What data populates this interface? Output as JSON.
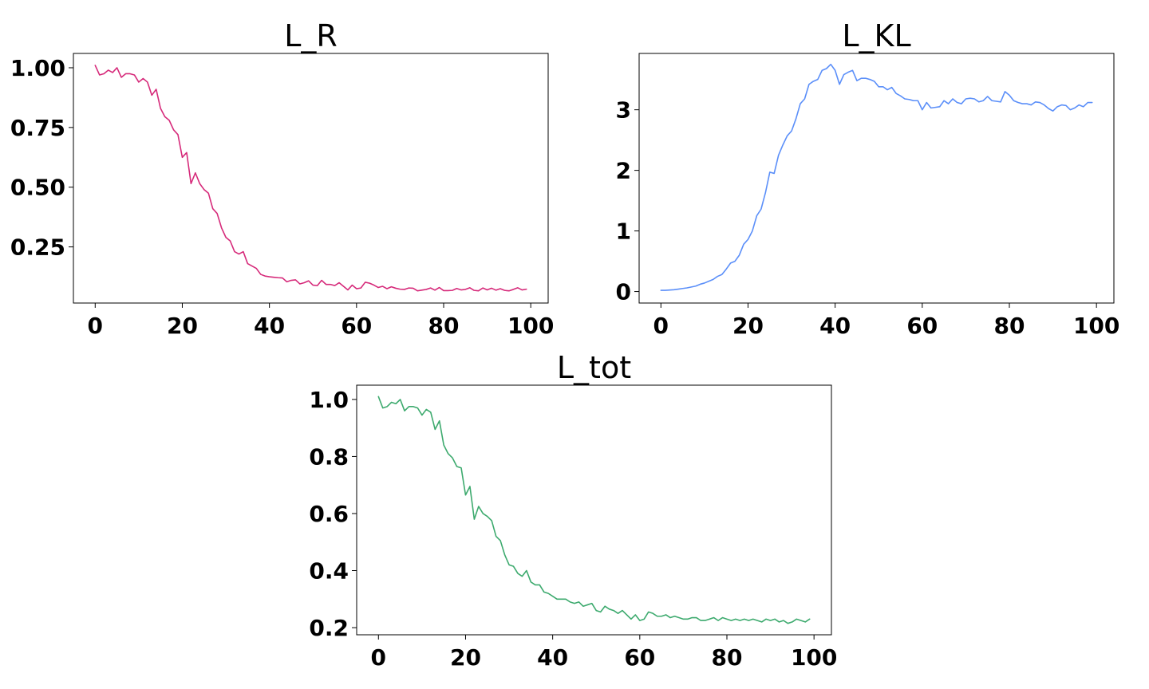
{
  "chart_data": [
    {
      "type": "line",
      "title": "L_R",
      "xlabel": "",
      "ylabel": "",
      "xlim": [
        -5,
        104
      ],
      "ylim": [
        0.015,
        1.06
      ],
      "xticks": [
        0,
        20,
        40,
        60,
        80,
        100
      ],
      "xtick_labels": [
        "0",
        "20",
        "40",
        "60",
        "80",
        "100"
      ],
      "yticks": [
        0.25,
        0.5,
        0.75,
        1.0
      ],
      "ytick_labels": [
        "0.25",
        "0.50",
        "0.75",
        "1.00"
      ],
      "grid": false,
      "legend": "none",
      "color": "#d62a7a",
      "series": [
        {
          "x": [
            0,
            1,
            2,
            3,
            4,
            5,
            6,
            7,
            8,
            9,
            10,
            11,
            12,
            13,
            14,
            15,
            16,
            17,
            18,
            19,
            20,
            21,
            22,
            23,
            24,
            25,
            26,
            27,
            28,
            29,
            30,
            31,
            32,
            33,
            34,
            35,
            36,
            37,
            38,
            39,
            40,
            41,
            42,
            43,
            44,
            45,
            46,
            47,
            48,
            49,
            50,
            51,
            52,
            53,
            54,
            55,
            56,
            57,
            58,
            59,
            60,
            61,
            62,
            63,
            64,
            65,
            66,
            67,
            68,
            69,
            70,
            71,
            72,
            73,
            74,
            75,
            76,
            77,
            78,
            79,
            80,
            81,
            82,
            83,
            84,
            85,
            86,
            87,
            88,
            89,
            90,
            91,
            92,
            93,
            94,
            95,
            96,
            97,
            98,
            99
          ],
          "values": [
            1.01,
            0.97,
            0.975,
            0.99,
            0.98,
            1.0,
            0.96,
            0.975,
            0.975,
            0.97,
            0.94,
            0.955,
            0.94,
            0.885,
            0.91,
            0.83,
            0.795,
            0.78,
            0.74,
            0.72,
            0.625,
            0.645,
            0.515,
            0.56,
            0.515,
            0.49,
            0.475,
            0.41,
            0.39,
            0.33,
            0.29,
            0.275,
            0.23,
            0.22,
            0.23,
            0.18,
            0.17,
            0.16,
            0.135,
            0.128,
            0.125,
            0.123,
            0.121,
            0.12,
            0.104,
            0.11,
            0.112,
            0.095,
            0.1,
            0.108,
            0.09,
            0.088,
            0.11,
            0.093,
            0.093,
            0.088,
            0.1,
            0.085,
            0.07,
            0.09,
            0.075,
            0.078,
            0.102,
            0.098,
            0.09,
            0.08,
            0.085,
            0.075,
            0.083,
            0.077,
            0.073,
            0.072,
            0.078,
            0.077,
            0.066,
            0.069,
            0.072,
            0.078,
            0.069,
            0.08,
            0.067,
            0.067,
            0.068,
            0.076,
            0.07,
            0.072,
            0.079,
            0.068,
            0.066,
            0.078,
            0.07,
            0.077,
            0.069,
            0.075,
            0.068,
            0.066,
            0.072,
            0.079,
            0.07,
            0.073
          ]
        }
      ]
    },
    {
      "type": "line",
      "title": "L_KL",
      "xlabel": "",
      "ylabel": "",
      "xlim": [
        -5,
        104
      ],
      "ylim": [
        -0.19,
        3.93
      ],
      "xticks": [
        0,
        20,
        40,
        60,
        80,
        100
      ],
      "xtick_labels": [
        "0",
        "20",
        "40",
        "60",
        "80",
        "100"
      ],
      "yticks": [
        0,
        1,
        2,
        3
      ],
      "ytick_labels": [
        "0",
        "1",
        "2",
        "3"
      ],
      "grid": false,
      "legend": "none",
      "color": "#5b8ff9",
      "series": [
        {
          "x": [
            0,
            1,
            2,
            3,
            4,
            5,
            6,
            7,
            8,
            9,
            10,
            11,
            12,
            13,
            14,
            15,
            16,
            17,
            18,
            19,
            20,
            21,
            22,
            23,
            24,
            25,
            26,
            27,
            28,
            29,
            30,
            31,
            32,
            33,
            34,
            35,
            36,
            37,
            38,
            39,
            40,
            41,
            42,
            43,
            44,
            45,
            46,
            47,
            48,
            49,
            50,
            51,
            52,
            53,
            54,
            55,
            56,
            57,
            58,
            59,
            60,
            61,
            62,
            63,
            64,
            65,
            66,
            67,
            68,
            69,
            70,
            71,
            72,
            73,
            74,
            75,
            76,
            77,
            78,
            79,
            80,
            81,
            82,
            83,
            84,
            85,
            86,
            87,
            88,
            89,
            90,
            91,
            92,
            93,
            94,
            95,
            96,
            97,
            98,
            99
          ],
          "values": [
            0.02,
            0.02,
            0.025,
            0.03,
            0.04,
            0.05,
            0.06,
            0.075,
            0.09,
            0.12,
            0.14,
            0.17,
            0.2,
            0.25,
            0.28,
            0.37,
            0.47,
            0.5,
            0.6,
            0.78,
            0.86,
            1.0,
            1.25,
            1.36,
            1.63,
            1.97,
            1.95,
            2.25,
            2.42,
            2.57,
            2.65,
            2.85,
            3.1,
            3.18,
            3.42,
            3.47,
            3.5,
            3.65,
            3.68,
            3.75,
            3.65,
            3.42,
            3.58,
            3.62,
            3.65,
            3.48,
            3.52,
            3.52,
            3.5,
            3.47,
            3.38,
            3.38,
            3.33,
            3.37,
            3.27,
            3.23,
            3.18,
            3.17,
            3.15,
            3.15,
            3.0,
            3.12,
            3.03,
            3.04,
            3.05,
            3.15,
            3.1,
            3.18,
            3.12,
            3.1,
            3.18,
            3.19,
            3.18,
            3.13,
            3.15,
            3.22,
            3.15,
            3.14,
            3.13,
            3.3,
            3.24,
            3.15,
            3.12,
            3.1,
            3.1,
            3.08,
            3.13,
            3.12,
            3.08,
            3.02,
            2.98,
            3.05,
            3.08,
            3.07,
            3.0,
            3.03,
            3.08,
            3.05,
            3.12,
            3.12
          ]
        }
      ]
    },
    {
      "type": "line",
      "title": "L_tot",
      "xlabel": "",
      "ylabel": "",
      "xlim": [
        -5,
        104
      ],
      "ylim": [
        0.175,
        1.05
      ],
      "xticks": [
        0,
        20,
        40,
        60,
        80,
        100
      ],
      "xtick_labels": [
        "0",
        "20",
        "40",
        "60",
        "80",
        "100"
      ],
      "yticks": [
        0.2,
        0.4,
        0.6,
        0.8,
        1.0
      ],
      "ytick_labels": [
        "0.2",
        "0.4",
        "0.6",
        "0.8",
        "1.0"
      ],
      "grid": false,
      "legend": "none",
      "color": "#3daa6e",
      "series": [
        {
          "x": [
            0,
            1,
            2,
            3,
            4,
            5,
            6,
            7,
            8,
            9,
            10,
            11,
            12,
            13,
            14,
            15,
            16,
            17,
            18,
            19,
            20,
            21,
            22,
            23,
            24,
            25,
            26,
            27,
            28,
            29,
            30,
            31,
            32,
            33,
            34,
            35,
            36,
            37,
            38,
            39,
            40,
            41,
            42,
            43,
            44,
            45,
            46,
            47,
            48,
            49,
            50,
            51,
            52,
            53,
            54,
            55,
            56,
            57,
            58,
            59,
            60,
            61,
            62,
            63,
            64,
            65,
            66,
            67,
            68,
            69,
            70,
            71,
            72,
            73,
            74,
            75,
            76,
            77,
            78,
            79,
            80,
            81,
            82,
            83,
            84,
            85,
            86,
            87,
            88,
            89,
            90,
            91,
            92,
            93,
            94,
            95,
            96,
            97,
            98,
            99
          ],
          "values": [
            1.01,
            0.97,
            0.975,
            0.99,
            0.985,
            1.0,
            0.96,
            0.975,
            0.975,
            0.97,
            0.945,
            0.965,
            0.955,
            0.895,
            0.925,
            0.84,
            0.81,
            0.795,
            0.765,
            0.76,
            0.665,
            0.695,
            0.58,
            0.625,
            0.6,
            0.59,
            0.575,
            0.52,
            0.505,
            0.455,
            0.42,
            0.415,
            0.39,
            0.38,
            0.4,
            0.36,
            0.35,
            0.35,
            0.325,
            0.32,
            0.31,
            0.3,
            0.3,
            0.3,
            0.29,
            0.285,
            0.29,
            0.275,
            0.28,
            0.285,
            0.26,
            0.255,
            0.275,
            0.265,
            0.26,
            0.25,
            0.26,
            0.245,
            0.23,
            0.245,
            0.225,
            0.23,
            0.255,
            0.25,
            0.24,
            0.24,
            0.245,
            0.235,
            0.24,
            0.235,
            0.23,
            0.23,
            0.235,
            0.235,
            0.225,
            0.225,
            0.23,
            0.235,
            0.225,
            0.235,
            0.23,
            0.225,
            0.23,
            0.225,
            0.23,
            0.225,
            0.23,
            0.225,
            0.22,
            0.23,
            0.225,
            0.23,
            0.22,
            0.225,
            0.215,
            0.22,
            0.23,
            0.225,
            0.22,
            0.23
          ]
        }
      ]
    }
  ]
}
